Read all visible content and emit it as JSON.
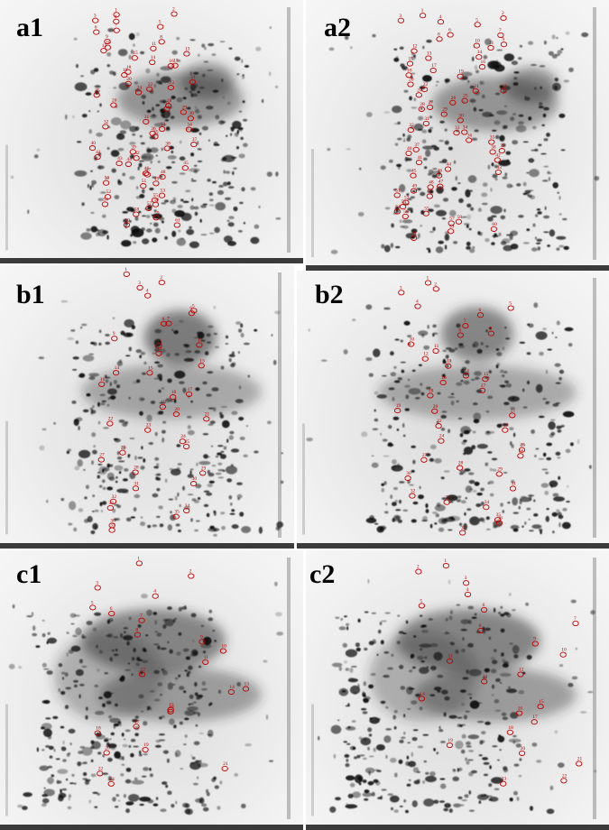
{
  "panels": [
    {
      "id": "a1",
      "label": "a1"
    },
    {
      "id": "a2",
      "label": "a2"
    },
    {
      "id": "b1",
      "label": "b1"
    },
    {
      "id": "b2",
      "label": "b2"
    },
    {
      "id": "c1",
      "label": "c1"
    },
    {
      "id": "c2",
      "label": "c2"
    }
  ],
  "marker_color": "#c00000",
  "spot_labels": {
    "a": [
      "1",
      "2",
      "3",
      "4",
      "5",
      "6",
      "7",
      "8",
      "9",
      "10",
      "11",
      "12",
      "13",
      "14",
      "15",
      "16",
      "17",
      "18",
      "19",
      "20",
      "21",
      "22",
      "23",
      "24",
      "25",
      "26",
      "27",
      "28",
      "29",
      "30",
      "31",
      "32",
      "33",
      "34",
      "35",
      "36",
      "37",
      "38",
      "39",
      "40",
      "41",
      "42",
      "43",
      "44",
      "45",
      "46",
      "47",
      "48",
      "49",
      "50",
      "51",
      "52",
      "53",
      "54",
      "55",
      "56",
      "57",
      "58",
      "59",
      "60",
      "61"
    ],
    "b": [
      "1",
      "2",
      "3",
      "4",
      "5",
      "6",
      "7",
      "8",
      "9",
      "10",
      "11",
      "12",
      "13",
      "14",
      "15",
      "16",
      "17",
      "18",
      "19",
      "20",
      "21",
      "22",
      "23",
      "24",
      "25",
      "26",
      "27",
      "28",
      "29",
      "30",
      "31",
      "32",
      "33",
      "34",
      "35",
      "36",
      "37"
    ],
    "c": [
      "1",
      "2",
      "3",
      "4",
      "5",
      "6",
      "7",
      "8",
      "9",
      "10",
      "11",
      "12",
      "13",
      "14",
      "15",
      "16",
      "17",
      "18",
      "19",
      "20",
      "21",
      "22",
      "23"
    ]
  }
}
